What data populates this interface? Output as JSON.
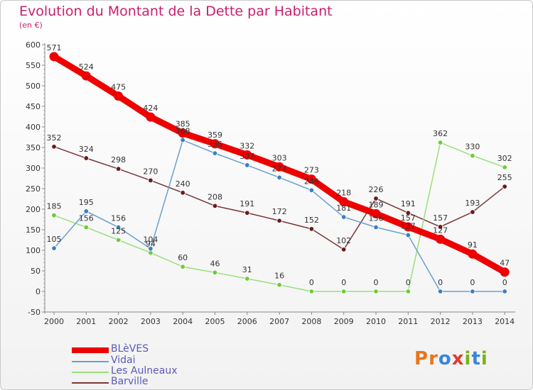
{
  "title": "Evolution du Montant de la Dette par Habitant",
  "subtitle": "(en €)",
  "logo": {
    "text": "Proxiti",
    "letters": [
      {
        "ch": "P",
        "color": "#e8751a"
      },
      {
        "ch": "r",
        "color": "#e8751a"
      },
      {
        "ch": "o",
        "color": "#3b86d8"
      },
      {
        "ch": "x",
        "color": "#e23a2e"
      },
      {
        "ch": "i",
        "color": "#7ab317"
      },
      {
        "ch": "t",
        "color": "#3b86d8"
      },
      {
        "ch": "i",
        "color": "#7ab317"
      }
    ]
  },
  "chart_data": {
    "type": "line",
    "title": "Evolution du Montant de la Dette par Habitant",
    "ylabel": "(en €)",
    "xlabel": "",
    "x": [
      "2000",
      "2001",
      "2002",
      "2003",
      "2004",
      "2005",
      "2006",
      "2007",
      "2008",
      "2009",
      "2010",
      "2011",
      "2012",
      "2013",
      "2014"
    ],
    "ylim": [
      -50,
      600
    ],
    "yticks": [
      "-50",
      "0",
      "50",
      "100",
      "150",
      "200",
      "250",
      "300",
      "350",
      "400",
      "450",
      "500",
      "550",
      "600"
    ],
    "grid": false,
    "legend": "bottom-left",
    "series": [
      {
        "name": "BLèVES",
        "color": "#ee0000",
        "marker": "#ee0000",
        "values": [
          571,
          524,
          475,
          424,
          385,
          359,
          332,
          303,
          273,
          218,
          189,
          157,
          127,
          91,
          47
        ]
      },
      {
        "name": "Vidai",
        "color": "#6a9fcf",
        "marker": "#3b7fc4",
        "values": [
          105,
          195,
          156,
          104,
          368,
          336,
          307,
          277,
          246,
          181,
          156,
          137,
          0,
          0,
          0
        ]
      },
      {
        "name": "Les Aulneaux",
        "color": "#99e07a",
        "marker": "#6ecb3a",
        "values": [
          185,
          156,
          125,
          94,
          60,
          46,
          31,
          16,
          0,
          0,
          0,
          0,
          362,
          330,
          302
        ]
      },
      {
        "name": "Barville",
        "color": "#7a3535",
        "marker": "#6b1a1a",
        "values": [
          352,
          324,
          298,
          270,
          240,
          208,
          191,
          172,
          152,
          102,
          226,
          191,
          157,
          193,
          255
        ]
      }
    ]
  }
}
